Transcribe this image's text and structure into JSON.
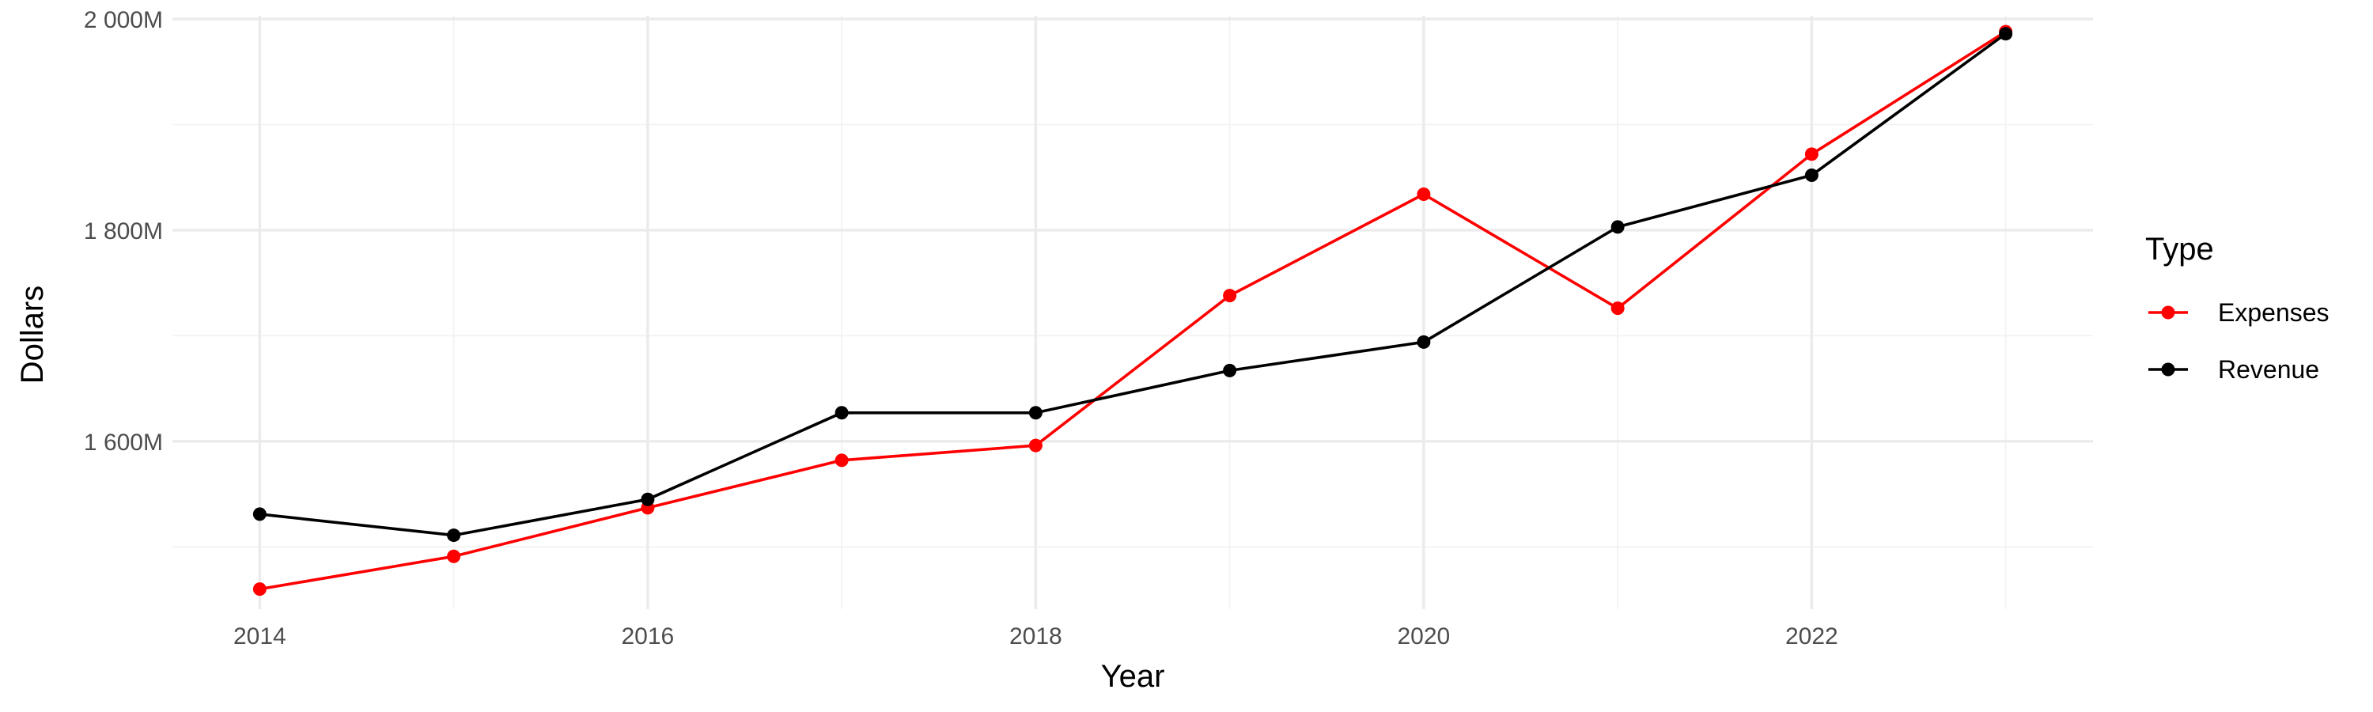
{
  "chart_data": {
    "type": "line",
    "xlabel": "Year",
    "ylabel": "Dollars",
    "x": [
      2014,
      2015,
      2016,
      2017,
      2018,
      2019,
      2020,
      2021,
      2022,
      2023
    ],
    "x_ticks": [
      "2014",
      "2016",
      "2018",
      "2020",
      "2022"
    ],
    "y_ticks": [
      "2 000M",
      "1 800M",
      "1 600M"
    ],
    "xlim": [
      2013.55,
      2023.45
    ],
    "ylim": [
      1441,
      2003
    ],
    "grid": true,
    "legend": {
      "title": "Type",
      "position": "right"
    },
    "series": [
      {
        "name": "Expenses",
        "color": "#ff0000",
        "values": [
          1460,
          1491,
          1537,
          1582,
          1596,
          1738,
          1834,
          1726,
          1872,
          1988
        ]
      },
      {
        "name": "Revenue",
        "color": "#000000",
        "values": [
          1531,
          1511,
          1545,
          1627,
          1627,
          1667,
          1694,
          1803,
          1852,
          1986
        ]
      }
    ]
  }
}
